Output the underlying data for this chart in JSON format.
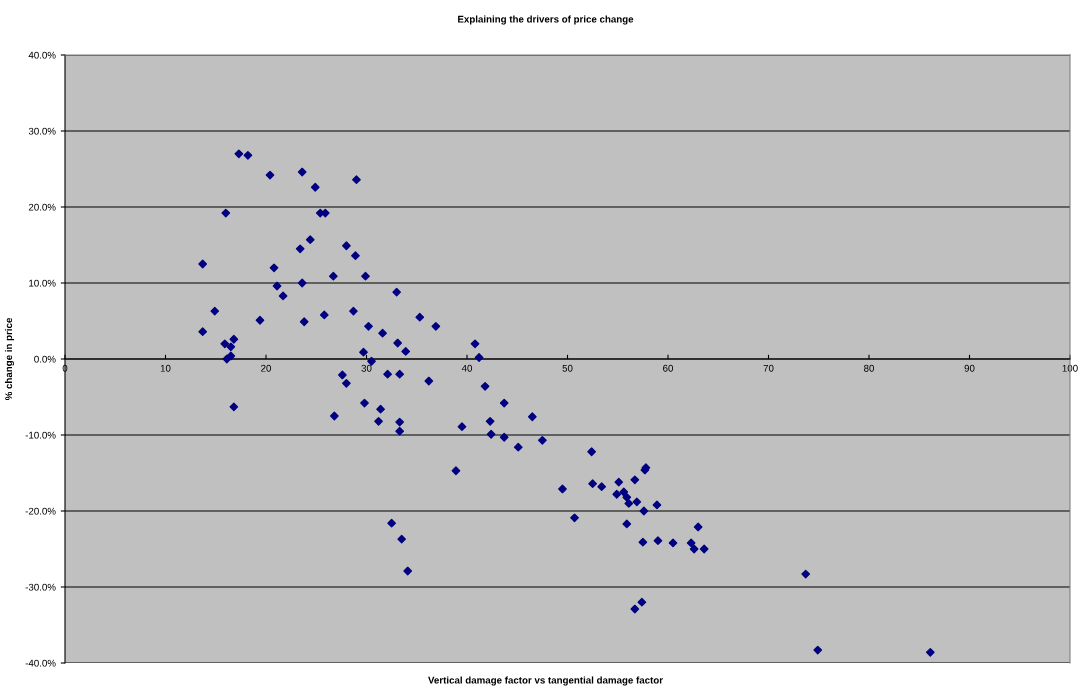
{
  "chart_data": {
    "type": "scatter",
    "title": "Explaining the drivers of price change",
    "xlabel": "Vertical damage factor vs tangential damage factor",
    "ylabel": "% change in price",
    "x": [
      13.7,
      13.7,
      14.9,
      16.0,
      15.9,
      16.1,
      16.5,
      16.8,
      16.5,
      16.8,
      17.3,
      18.2,
      19.4,
      20.4,
      20.8,
      21.1,
      21.7,
      23.6,
      23.4,
      23.6,
      23.8,
      24.4,
      24.9,
      25.4,
      25.9,
      25.8,
      26.7,
      26.8,
      27.6,
      28.0,
      28.0,
      28.7,
      28.9,
      29.0,
      29.7,
      29.8,
      29.9,
      30.2,
      30.5,
      31.2,
      31.4,
      31.6,
      32.1,
      32.5,
      33.0,
      33.1,
      33.3,
      33.3,
      33.3,
      33.5,
      33.9,
      34.1,
      35.3,
      36.2,
      36.9,
      38.9,
      39.5,
      40.8,
      41.2,
      41.8,
      42.3,
      42.4,
      43.7,
      43.7,
      45.1,
      46.5,
      47.5,
      49.5,
      50.7,
      52.4,
      52.5,
      53.4,
      54.9,
      55.1,
      55.6,
      55.9,
      56.1,
      55.9,
      56.7,
      56.9,
      57.7,
      57.8,
      57.6,
      57.5,
      56.7,
      57.4,
      58.9,
      59.0,
      60.5,
      62.3,
      62.6,
      63.0,
      63.6,
      73.7,
      74.9,
      86.1
    ],
    "values": [
      12.5,
      3.6,
      6.3,
      19.2,
      2.0,
      0.0,
      1.6,
      2.6,
      0.4,
      -6.3,
      27.0,
      26.8,
      5.1,
      24.2,
      12.0,
      9.6,
      8.3,
      24.6,
      14.5,
      10.0,
      4.9,
      15.7,
      22.6,
      19.2,
      19.2,
      5.8,
      10.9,
      -7.5,
      -2.1,
      -3.2,
      14.9,
      6.3,
      13.6,
      23.6,
      0.9,
      -5.8,
      10.9,
      4.3,
      -0.3,
      -8.2,
      -6.6,
      3.4,
      -2.0,
      -21.6,
      8.8,
      2.1,
      -2.0,
      -8.3,
      -9.5,
      -23.7,
      1.0,
      -27.9,
      5.5,
      -2.9,
      4.3,
      -14.7,
      -8.9,
      2.0,
      0.2,
      -3.6,
      -8.2,
      -9.9,
      -5.8,
      -10.3,
      -11.6,
      -7.6,
      -10.7,
      -17.1,
      -20.9,
      -12.2,
      -16.4,
      -16.8,
      -17.8,
      -16.2,
      -17.5,
      -18.2,
      -19.0,
      -21.7,
      -15.9,
      -18.8,
      -14.6,
      -14.3,
      -20.0,
      -24.1,
      -32.9,
      -32.0,
      -19.2,
      -23.9,
      -24.2,
      -24.2,
      -25.0,
      -22.1,
      -25.0,
      -28.3,
      -38.3,
      -38.6
    ],
    "color": "#000080",
    "marker": "diamond",
    "xlim": [
      0,
      100
    ],
    "xticks": [
      0,
      10,
      20,
      30,
      40,
      50,
      60,
      70,
      80,
      90,
      100
    ],
    "ylim": [
      -40,
      40
    ],
    "yticks": [
      {
        "value": -40,
        "label": "-40.0%"
      },
      {
        "value": -30,
        "label": "-30.0%"
      },
      {
        "value": -20,
        "label": "-20.0%"
      },
      {
        "value": -10,
        "label": "-10.0%"
      },
      {
        "value": 0,
        "label": "0.0%"
      },
      {
        "value": 10,
        "label": "10.0%"
      },
      {
        "value": 20,
        "label": "20.0%"
      },
      {
        "value": 30,
        "label": "30.0%"
      },
      {
        "value": 40,
        "label": "40.0%"
      }
    ],
    "grid": "y"
  }
}
